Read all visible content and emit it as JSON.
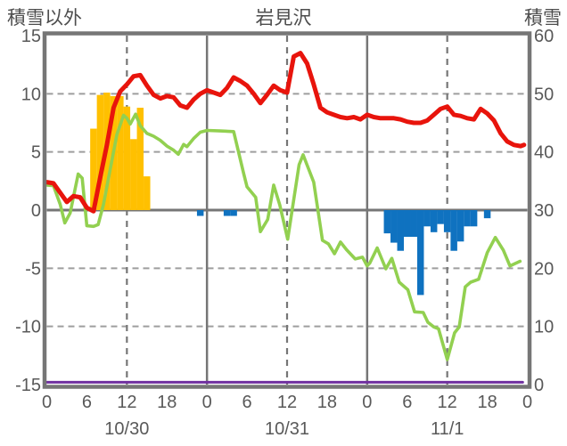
{
  "header": {
    "left_axis_label": "積雪以外",
    "title": "岩見沢",
    "right_axis_label": "積雪"
  },
  "colors": {
    "red": "#e8140c",
    "green": "#92d050",
    "orange": "#ffc000",
    "blue": "#0f72c0",
    "purple": "#7030a0",
    "axis": "#767676",
    "grid": "#9e9e9e",
    "text": "#595959"
  },
  "chart_data": {
    "type": "combo",
    "title": "岩見沢",
    "left_axis": {
      "label": "積雪以外",
      "ticks": [
        15,
        10,
        5,
        0,
        -5,
        -10,
        -15
      ],
      "range": [
        -15,
        15
      ]
    },
    "right_axis": {
      "label": "積雪",
      "ticks": [
        60,
        50,
        40,
        30,
        20,
        10,
        0
      ],
      "range": [
        0,
        60
      ]
    },
    "x_axis": {
      "total_hours": 72,
      "hour_tick_step": 6,
      "hour_tick_labels": [
        "0",
        "6",
        "12",
        "18",
        "0",
        "6",
        "12",
        "18",
        "0",
        "6",
        "12",
        "18",
        "0"
      ],
      "day_labels": [
        "10/30",
        "10/31",
        "11/1"
      ],
      "day_label_hours": [
        12,
        36,
        60
      ],
      "solid_grid_hours": [
        24,
        48
      ],
      "dashed_grid_hours": [
        12,
        36,
        60
      ]
    },
    "grid": {
      "dashed_left_values": [
        10,
        5,
        -5,
        -10
      ],
      "zero_line_left_value": 0
    },
    "series": [
      {
        "name": "orange-bars",
        "type": "bar",
        "axis": "left",
        "color_key": "orange",
        "bars": [
          [
            7,
            7.0
          ],
          [
            8,
            9.9
          ],
          [
            9,
            10.1
          ],
          [
            10,
            9.8
          ],
          [
            11,
            9.8
          ],
          [
            12,
            8.9
          ],
          [
            13,
            6.1
          ],
          [
            14,
            8.8
          ],
          [
            15,
            2.9
          ]
        ]
      },
      {
        "name": "blue-bars",
        "type": "bar",
        "axis": "left",
        "color_key": "blue",
        "bars": [
          [
            23,
            -0.5
          ],
          [
            27,
            -0.5
          ],
          [
            28,
            -0.5
          ],
          [
            51,
            -2.0
          ],
          [
            52,
            -2.8
          ],
          [
            53,
            -3.5
          ],
          [
            54,
            -2.3
          ],
          [
            55,
            -2.3
          ],
          [
            56,
            -7.3
          ],
          [
            57,
            -1.4
          ],
          [
            58,
            -1.9
          ],
          [
            59,
            -1.2
          ],
          [
            60,
            -1.9
          ],
          [
            61,
            -3.5
          ],
          [
            62,
            -2.7
          ],
          [
            63,
            -1.4
          ],
          [
            64,
            -1.4
          ],
          [
            66,
            -0.7
          ]
        ]
      },
      {
        "name": "purple-baseline",
        "type": "line",
        "axis": "right",
        "color_key": "purple",
        "width": 3,
        "points": [
          [
            0,
            0.4
          ],
          [
            71.3,
            0.4
          ]
        ]
      },
      {
        "name": "green-snow-depth-line",
        "type": "line",
        "axis": "right",
        "color_key": "green",
        "width": 3.6,
        "points": [
          [
            0,
            34.3
          ],
          [
            1,
            34.2
          ],
          [
            2,
            31.0
          ],
          [
            2.7,
            27.8
          ],
          [
            3.5,
            29.5
          ],
          [
            4.7,
            36.2
          ],
          [
            5.3,
            35.5
          ],
          [
            6,
            27.3
          ],
          [
            7,
            27.2
          ],
          [
            7.7,
            27.5
          ],
          [
            8.5,
            31.0
          ],
          [
            9.5,
            37.0
          ],
          [
            10.5,
            43.0
          ],
          [
            11.5,
            46.3
          ],
          [
            12,
            45.8
          ],
          [
            12.5,
            44.8
          ],
          [
            13.3,
            46.5
          ],
          [
            14,
            44.5
          ],
          [
            15,
            43.2
          ],
          [
            16,
            42.7
          ],
          [
            17,
            42.0
          ],
          [
            18,
            41.0
          ],
          [
            19,
            40.3
          ],
          [
            19.7,
            39.6
          ],
          [
            20.5,
            41.3
          ],
          [
            21,
            40.9
          ],
          [
            22,
            42.3
          ],
          [
            23,
            43.4
          ],
          [
            24,
            43.7
          ],
          [
            26,
            43.6
          ],
          [
            28,
            43.5
          ],
          [
            29.5,
            36.3
          ],
          [
            30,
            34.0
          ],
          [
            31.3,
            32.2
          ],
          [
            32,
            26.3
          ],
          [
            33.1,
            28.4
          ],
          [
            34,
            34.3
          ],
          [
            34.9,
            30.9
          ],
          [
            36.1,
            25.0
          ],
          [
            37.8,
            37.8
          ],
          [
            38.4,
            39.5
          ],
          [
            40,
            34.8
          ],
          [
            41.3,
            24.8
          ],
          [
            42.2,
            24.2
          ],
          [
            43.1,
            22.5
          ],
          [
            44,
            24.5
          ],
          [
            44.9,
            23.2
          ],
          [
            46.2,
            21.6
          ],
          [
            47.3,
            21.9
          ],
          [
            48,
            20.4
          ],
          [
            48.4,
            20.9
          ],
          [
            49.5,
            23.5
          ],
          [
            50.8,
            19.9
          ],
          [
            51.7,
            21.7
          ],
          [
            52.8,
            17.6
          ],
          [
            54.1,
            16.3
          ],
          [
            55.1,
            12.5
          ],
          [
            56.4,
            12.4
          ],
          [
            57.1,
            10.7
          ],
          [
            58,
            9.9
          ],
          [
            58.7,
            9.6
          ],
          [
            60,
            4.3
          ],
          [
            61.1,
            8.9
          ],
          [
            61.8,
            9.9
          ],
          [
            62.7,
            16.8
          ],
          [
            63.5,
            17.6
          ],
          [
            64.7,
            18.1
          ],
          [
            66,
            22.7
          ],
          [
            67.2,
            25.3
          ],
          [
            68.4,
            23.1
          ],
          [
            69.4,
            20.4
          ],
          [
            70.9,
            21.2
          ]
        ]
      },
      {
        "name": "red-temperature-line",
        "type": "line",
        "axis": "left",
        "color_key": "red",
        "width": 5,
        "points": [
          [
            0,
            2.4
          ],
          [
            1,
            2.3
          ],
          [
            2,
            1.5
          ],
          [
            3,
            0.7
          ],
          [
            4,
            1.2
          ],
          [
            5,
            1.1
          ],
          [
            6,
            0.2
          ],
          [
            7,
            -0.1
          ],
          [
            8,
            2.8
          ],
          [
            9,
            5.6
          ],
          [
            10,
            8.8
          ],
          [
            11,
            10.2
          ],
          [
            12,
            10.8
          ],
          [
            13,
            11.5
          ],
          [
            14,
            11.6
          ],
          [
            15,
            10.7
          ],
          [
            16,
            9.9
          ],
          [
            17,
            9.6
          ],
          [
            18,
            9.8
          ],
          [
            19,
            9.7
          ],
          [
            20,
            9.0
          ],
          [
            21,
            8.8
          ],
          [
            22,
            9.5
          ],
          [
            23,
            10.0
          ],
          [
            24,
            10.3
          ],
          [
            25,
            10.1
          ],
          [
            26,
            9.9
          ],
          [
            27,
            10.5
          ],
          [
            28,
            11.4
          ],
          [
            29,
            11.1
          ],
          [
            30,
            10.7
          ],
          [
            31,
            10.0
          ],
          [
            32,
            9.2
          ],
          [
            33,
            9.9
          ],
          [
            34,
            10.7
          ],
          [
            35,
            10.3
          ],
          [
            36,
            10.1
          ],
          [
            37,
            13.2
          ],
          [
            38,
            13.5
          ],
          [
            39,
            12.6
          ],
          [
            40,
            10.8
          ],
          [
            41,
            8.8
          ],
          [
            42,
            8.4
          ],
          [
            43,
            8.2
          ],
          [
            44,
            8.0
          ],
          [
            45,
            7.9
          ],
          [
            46,
            8.0
          ],
          [
            47,
            7.8
          ],
          [
            48,
            8.2
          ],
          [
            49,
            8.0
          ],
          [
            50,
            7.9
          ],
          [
            51,
            7.9
          ],
          [
            52,
            7.9
          ],
          [
            53,
            7.8
          ],
          [
            54,
            7.6
          ],
          [
            55,
            7.5
          ],
          [
            56,
            7.5
          ],
          [
            57,
            7.7
          ],
          [
            58,
            8.2
          ],
          [
            59,
            8.7
          ],
          [
            60,
            8.9
          ],
          [
            61,
            8.2
          ],
          [
            62,
            8.1
          ],
          [
            63,
            7.9
          ],
          [
            64,
            7.8
          ],
          [
            65,
            8.7
          ],
          [
            66,
            8.3
          ],
          [
            67,
            7.7
          ],
          [
            68,
            6.6
          ],
          [
            69,
            5.9
          ],
          [
            70,
            5.6
          ],
          [
            71,
            5.5
          ],
          [
            71.5,
            5.6
          ]
        ]
      }
    ]
  }
}
